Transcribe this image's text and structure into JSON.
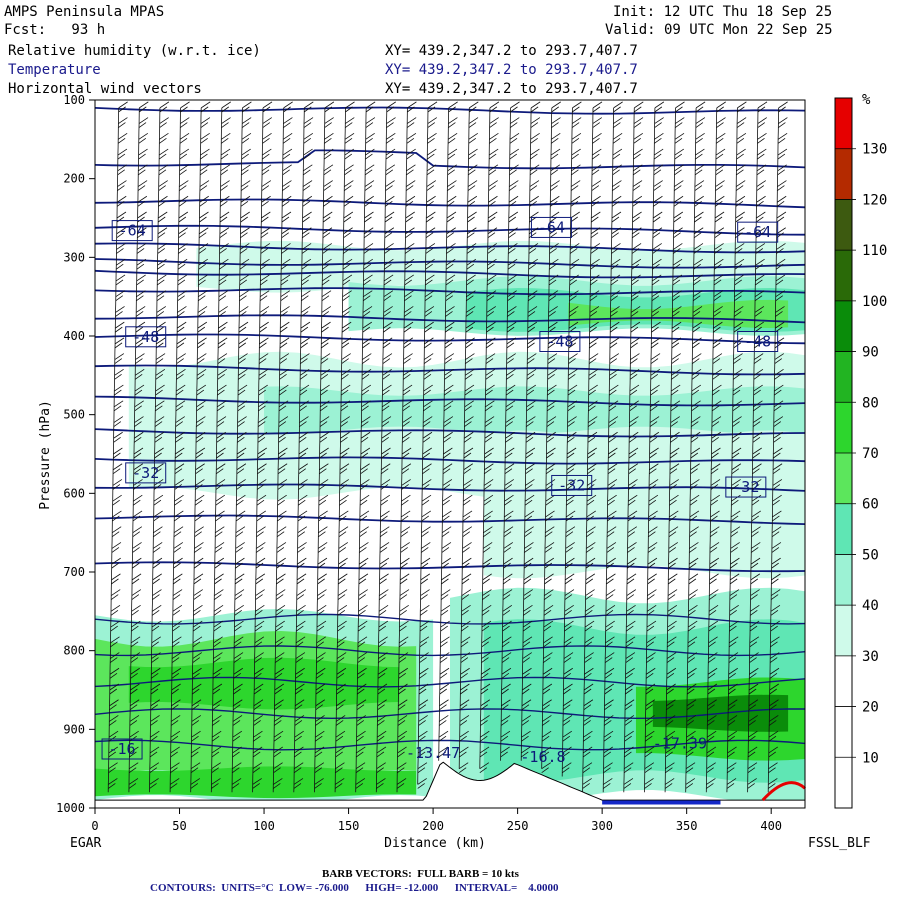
{
  "header": {
    "model": "AMPS Peninsula MPAS",
    "fcst": "Fcst:   93 h",
    "init": "Init: 12 UTC Thu 18 Sep 25",
    "valid": "Valid: 09 UTC Mon 22 Sep 25",
    "field1": "Relative humidity (w.r.t. ice)",
    "field2": "Temperature",
    "field3": "Horizontal wind vectors",
    "xy1": "XY= 439.2,347.2 to 293.7,407.7",
    "xy2": "XY= 439.2,347.2 to 293.7,407.7",
    "xy3": "XY= 439.2,347.2 to 293.7,407.7"
  },
  "footer": {
    "barb": "BARB VECTORS:  FULL BARB = 10 kts",
    "contours": "CONTOURS:  UNITS=°C  LOW= -76.000      HIGH= -12.000      INTERVAL=    4.0000",
    "left_label": "EGAR",
    "right_label": "FSSL_BLF"
  },
  "colors": {
    "temp_line": "#0d1a7a",
    "terrain_blue": "#1428c8"
  },
  "chart_data": {
    "type": "cross-section",
    "title": "Relative humidity (w.r.t. ice), Temperature, Horizontal wind vectors",
    "xlabel": "Distance (km)",
    "ylabel": "Pressure (hPa)",
    "xlim": [
      0,
      420
    ],
    "ylim": [
      1000,
      100
    ],
    "x_ticks": [
      0,
      50,
      100,
      150,
      200,
      250,
      300,
      350,
      400
    ],
    "y_ticks": [
      100,
      200,
      300,
      400,
      500,
      600,
      700,
      800,
      900,
      1000
    ],
    "colorbar": {
      "unit": "%",
      "labels": [
        10,
        20,
        30,
        40,
        50,
        60,
        70,
        80,
        90,
        100,
        110,
        120,
        130
      ],
      "colors": [
        "#ffffff",
        "#ffffff",
        "#ffffff",
        "#cffaea",
        "#9cf2d4",
        "#5fe6b4",
        "#5ce65c",
        "#2dd62d",
        "#22b422",
        "#0a8c0a",
        "#2a6a08",
        "#3d5a10",
        "#b42a00",
        "#e60000"
      ]
    },
    "isotherm_labels": [
      {
        "text": "-64",
        "x": 22,
        "p": 266
      },
      {
        "text": "-64",
        "x": 270,
        "p": 262
      },
      {
        "text": "-64",
        "x": 392,
        "p": 268
      },
      {
        "text": "-48",
        "x": 30,
        "p": 401
      },
      {
        "text": "-48",
        "x": 275,
        "p": 407
      },
      {
        "text": "-48",
        "x": 392,
        "p": 407
      },
      {
        "text": "-32",
        "x": 30,
        "p": 574
      },
      {
        "text": "-32",
        "x": 282,
        "p": 590
      },
      {
        "text": "-32",
        "x": 385,
        "p": 592
      },
      {
        "text": "-16",
        "x": 16,
        "p": 925
      },
      {
        "text": "-17.39",
        "x": 346,
        "p": 918
      },
      {
        "text": "-13.47",
        "x": 200,
        "p": 930
      },
      {
        "text": "-16.8",
        "x": 265,
        "p": 935
      }
    ]
  }
}
